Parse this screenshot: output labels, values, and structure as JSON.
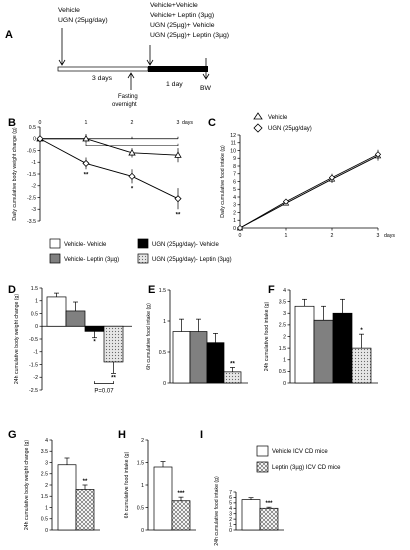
{
  "colors": {
    "white": "#ffffff",
    "grey": "#808080",
    "black": "#000000",
    "leptin_pattern": "#bbbbbb"
  },
  "panel_a": {
    "label": "A",
    "day0_text": [
      "Vehicle",
      "UGN (25µg/day)"
    ],
    "day3_text": [
      "Vehicle+Vehicle",
      "Vehicle+ Leptin (3µg)",
      "UGN (25µg)+ Vehicle",
      "UGN (25µg)+ Leptin (3µg)"
    ],
    "three_days": "3 days",
    "one_day": "1 day",
    "fasting": [
      "Fasting",
      "overnight"
    ],
    "bw": "BW"
  },
  "legend_mid": [
    "Vehicle- Vehicle",
    "UGN (25µg/day)- Vehicle",
    "Vehicle- Leptin (3µg)",
    "UGN (25µg/day)- Leptin (3µg)"
  ],
  "legend_bottom": [
    "Vehicle ICV CD mice",
    "Leptin (3µg) ICV CD mice"
  ],
  "chart_data": [
    {
      "panel": "B",
      "type": "line",
      "ylabel": "Daily cumulative body weight change (g)",
      "xlabel": "days",
      "x": [
        0,
        1,
        2,
        3
      ],
      "xticks": [
        "0",
        "1",
        "2",
        "3"
      ],
      "ylim": [
        -3.5,
        0.5
      ],
      "yticks": [
        "0.5",
        "0",
        "-0.5",
        "-1",
        "-1.5",
        "-2",
        "-2.5",
        "-3",
        "-3.5"
      ],
      "series": [
        {
          "name": "Vehicle",
          "values": [
            0,
            0,
            -0.6,
            -0.7
          ],
          "err": [
            0,
            0.2,
            0.2,
            0.3
          ]
        },
        {
          "name": "UGN (25µg/day)",
          "values": [
            0,
            -1.05,
            -1.6,
            -2.55
          ],
          "err": [
            0,
            0.25,
            0.3,
            0.45
          ]
        }
      ],
      "stars": [
        "**",
        "*",
        "**"
      ]
    },
    {
      "panel": "C",
      "type": "line",
      "ylabel": "Daily cumulative food intake (g)",
      "xlabel": "days",
      "x": [
        0,
        1,
        2,
        3
      ],
      "xticks": [
        "0",
        "1",
        "2",
        "3"
      ],
      "ylim": [
        0,
        12
      ],
      "yticks": [
        "0",
        "1",
        "2",
        "3",
        "4",
        "5",
        "6",
        "7",
        "8",
        "9",
        "10",
        "11",
        "12"
      ],
      "series": [
        {
          "name": "Vehicle",
          "values": [
            0,
            3.2,
            6.3,
            9.3
          ],
          "err": [
            0,
            0.3,
            0.5,
            0.6
          ]
        },
        {
          "name": "UGN (25µg/day)",
          "values": [
            0,
            3.4,
            6.5,
            9.5
          ],
          "err": [
            0,
            0.3,
            0.5,
            0.6
          ]
        }
      ]
    },
    {
      "panel": "D",
      "type": "bar",
      "ylabel": "24h cumulative body weight change (g)",
      "ylim": [
        -2.5,
        1.5
      ],
      "yticks": [
        "1.5",
        "1",
        "0.5",
        "0",
        "-0.5",
        "-1",
        "-1.5",
        "-2",
        "-2.5"
      ],
      "values": [
        1.15,
        0.6,
        -0.2,
        -1.4
      ],
      "err": [
        0.15,
        0.35,
        0.25,
        0.45
      ],
      "stars": [
        "",
        "",
        "*",
        "**"
      ],
      "annotation": "P=0.07"
    },
    {
      "panel": "E",
      "type": "bar",
      "ylabel": "6h cumulative food intake (g)",
      "ylim": [
        0,
        1.5
      ],
      "yticks": [
        "0",
        "0.5",
        "1",
        "1.5"
      ],
      "values": [
        0.83,
        0.83,
        0.65,
        0.18
      ],
      "err": [
        0.2,
        0.2,
        0.15,
        0.07
      ],
      "stars": [
        "",
        "",
        "",
        "**"
      ]
    },
    {
      "panel": "F",
      "type": "bar",
      "ylabel": "24h cumulative food intake (g)",
      "ylim": [
        0,
        4
      ],
      "yticks": [
        "0",
        "0.5",
        "1",
        "1.5",
        "2",
        "2.5",
        "3",
        "3.5",
        "4"
      ],
      "values": [
        3.3,
        2.7,
        3.0,
        1.5
      ],
      "err": [
        0.3,
        0.6,
        0.6,
        0.6
      ],
      "stars": [
        "",
        "",
        "",
        "*"
      ]
    },
    {
      "panel": "G",
      "type": "bar",
      "ylabel": "24h cumulative body weight change (g)",
      "ylim": [
        0,
        4
      ],
      "yticks": [
        "0",
        "0.5",
        "1",
        "1.5",
        "2",
        "2.5",
        "3",
        "3.5",
        "4"
      ],
      "values": [
        2.9,
        1.8
      ],
      "err": [
        0.3,
        0.2
      ],
      "stars": [
        "",
        "**"
      ]
    },
    {
      "panel": "H",
      "type": "bar",
      "ylabel": "6h cumulative food intake (g)",
      "ylim": [
        0,
        2
      ],
      "yticks": [
        "0",
        "0.5",
        "1",
        "1.5",
        "2"
      ],
      "values": [
        1.4,
        0.65
      ],
      "err": [
        0.12,
        0.08
      ],
      "stars": [
        "",
        "***"
      ]
    },
    {
      "panel": "I",
      "type": "bar",
      "ylabel": "24h cumulative food intake (g)",
      "ylim": [
        0,
        7
      ],
      "yticks": [
        "0",
        "1",
        "2",
        "3",
        "4",
        "5",
        "6",
        "7"
      ],
      "values": [
        5.6,
        4.0
      ],
      "err": [
        0.35,
        0.2
      ],
      "stars": [
        "",
        "***"
      ]
    }
  ]
}
